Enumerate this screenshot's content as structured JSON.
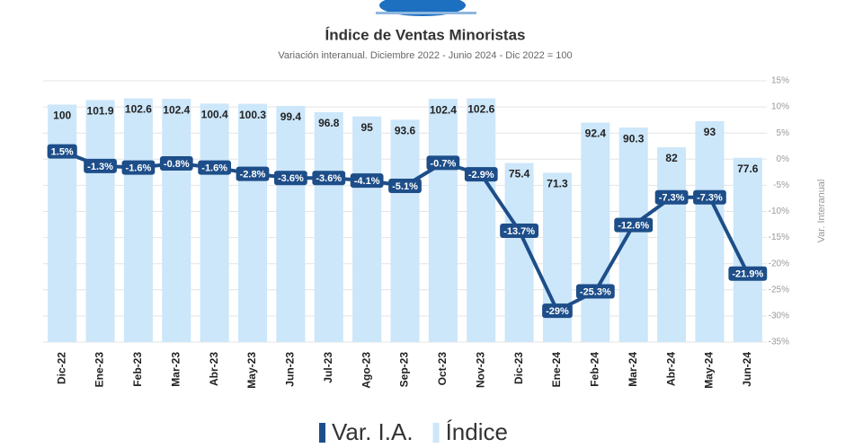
{
  "chart_data": {
    "type": "combo",
    "title": "Índice de Ventas Minoristas",
    "subtitle": "Variación interanual. Diciembre 2022 - Junio 2024 - Dic 2022 = 100",
    "categories": [
      "Dic-22",
      "Ene-23",
      "Feb-23",
      "Mar-23",
      "Abr-23",
      "May-23",
      "Jun-23",
      "Jul-23",
      "Ago-23",
      "Sep-23",
      "Oct-23",
      "Nov-23",
      "Dic-23",
      "Ene-24",
      "Feb-24",
      "Mar-24",
      "Abr-24",
      "May-24",
      "Jun-24"
    ],
    "series": [
      {
        "name": "Var. I.A.",
        "type": "line",
        "axis": "y2",
        "color": "#1d4e89",
        "values": [
          1.5,
          -1.3,
          -1.6,
          -0.8,
          -1.6,
          -2.8,
          -3.6,
          -3.6,
          -4.1,
          -5.1,
          -0.7,
          -2.9,
          -13.7,
          -29,
          -25.3,
          -12.6,
          -7.3,
          -7.3,
          -21.9
        ],
        "value_labels": [
          "1.5%",
          "-1.3%",
          "-1.6%",
          "-0.8%",
          "-1.6%",
          "-2.8%",
          "-3.6%",
          "-3.6%",
          "-4.1%",
          "-5.1%",
          "-0.7%",
          "-2.9%",
          "-13.7%",
          "-29%",
          "-25.3%",
          "-12.6%",
          "-7.3%",
          "-7.3%",
          "-21.9%"
        ]
      },
      {
        "name": "Índice",
        "type": "bar",
        "axis": "y",
        "color": "#cce6fa",
        "values": [
          100,
          101.9,
          102.6,
          102.4,
          100.4,
          100.3,
          99.4,
          96.8,
          95,
          93.6,
          102.4,
          102.6,
          75.4,
          71.3,
          92.4,
          90.3,
          82,
          93,
          77.6
        ]
      }
    ],
    "ylim": [
      0,
      110
    ],
    "y2lim": [
      -35,
      15
    ],
    "y2ticks": [
      {
        "value": 15,
        "label": "15%"
      },
      {
        "value": 10,
        "label": "10%"
      },
      {
        "value": 5,
        "label": "5%"
      },
      {
        "value": 0,
        "label": "0%"
      },
      {
        "value": -5,
        "label": "-5%"
      },
      {
        "value": -10,
        "label": "-10%"
      },
      {
        "value": -15,
        "label": "-15%"
      },
      {
        "value": -20,
        "label": "-20%"
      },
      {
        "value": -25,
        "label": "-25%"
      },
      {
        "value": -30,
        "label": "-30%"
      },
      {
        "value": -35,
        "label": "-35%"
      }
    ],
    "y2label": "Var. Interanual",
    "grid": true
  }
}
